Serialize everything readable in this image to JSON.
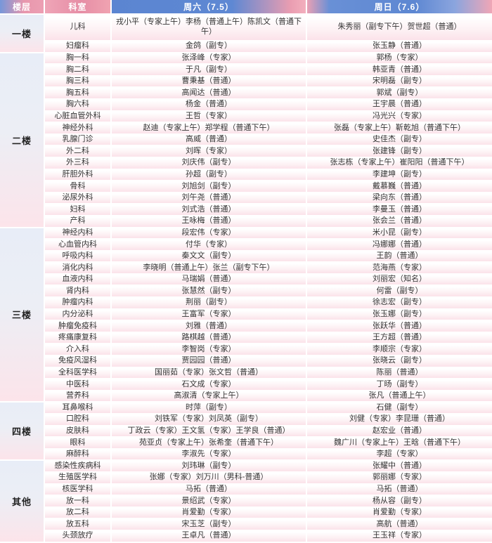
{
  "header": {
    "floor": "楼层",
    "dept": "科室",
    "sat": "周六（7.5）",
    "sun": "周日（7.6）"
  },
  "colors": {
    "header_pink": "#ec9fb3",
    "header_blue": "#5e87d2",
    "row_pink": "#fbe2e9",
    "floor_blue": "#e8edf7",
    "floor_pink": "#fce4ea"
  },
  "floors": [
    {
      "label": "一楼",
      "rows": 2
    },
    {
      "label": "二楼",
      "rows": 15
    },
    {
      "label": "三楼",
      "rows": 15
    },
    {
      "label": "四楼",
      "rows": 5
    },
    {
      "label": "其他",
      "rows": 7
    }
  ],
  "rows": [
    {
      "dept": "儿科",
      "sat": "戎小平（专家上午）李杨（普通上午）陈凯文（普通下午）",
      "sun": "朱秀丽（副专下午）贺世超（普通）",
      "tall": true
    },
    {
      "dept": "妇瘤科",
      "sat": "金鸽（副专）",
      "sun": "张玉静（普通）"
    },
    {
      "dept": "胸一科",
      "sat": "张泽峰（专家）",
      "sun": "郭杨（专家）"
    },
    {
      "dept": "胸二科",
      "sat": "于凡（副专）",
      "sun": "韩亚青（普通）"
    },
    {
      "dept": "胸三科",
      "sat": "曹秉基（普通）",
      "sun": "宋明磊（副专）"
    },
    {
      "dept": "胸五科",
      "sat": "高闻达（普通）",
      "sun": "郭斌（副专）"
    },
    {
      "dept": "胸六科",
      "sat": "杨金（普通）",
      "sun": "王宇晨（普通）"
    },
    {
      "dept": "心脏血管外科",
      "sat": "王哲（专家）",
      "sun": "冯光兴（专家）"
    },
    {
      "dept": "神经外科",
      "sat": "赵迪（专家上午）郑学程（普通下午）",
      "sun": "张磊（专家上午）靳乾旭（普通下午）"
    },
    {
      "dept": "乳腺门诊",
      "sat": "高威（普通）",
      "sun": "史佳杰（副专）"
    },
    {
      "dept": "外二科",
      "sat": "刘晖（专家）",
      "sun": "张建锋（副专）"
    },
    {
      "dept": "外三科",
      "sat": "刘庆伟（副专）",
      "sun": "张志栋（专家上午）崔阳阳（普通下午）"
    },
    {
      "dept": "肝胆外科",
      "sat": "孙超（副专）",
      "sun": "李建坤（副专）"
    },
    {
      "dept": "骨科",
      "sat": "刘旭剑（副专）",
      "sun": "戴慕巍（普通）"
    },
    {
      "dept": "泌尿外科",
      "sat": "刘午尧（普通）",
      "sun": "梁向东（普通）"
    },
    {
      "dept": "妇科",
      "sat": "刘式浩（普通）",
      "sun": "李曼玉（普通）"
    },
    {
      "dept": "产科",
      "sat": "王咏梅（普通）",
      "sun": "张会兰（普通）"
    },
    {
      "dept": "神经内科",
      "sat": "段宏伟（专家）",
      "sun": "米小昆（副专）"
    },
    {
      "dept": "心血管内科",
      "sat": "付华（专家）",
      "sun": "冯娜娜（普通）"
    },
    {
      "dept": "呼吸内科",
      "sat": "秦文文（副专）",
      "sun": "王韵（普通）"
    },
    {
      "dept": "消化内科",
      "sat": "李晓明（普通上午）张兰（副专下午）",
      "sun": "范海燕（专家）"
    },
    {
      "dept": "血液内科",
      "sat": "马瑞娟（普通）",
      "sun": "刘丽宏（知名）"
    },
    {
      "dept": "肾内科",
      "sat": "张慧然（副专）",
      "sun": "何雷（副专）"
    },
    {
      "dept": "肿瘤内科",
      "sat": "荆丽（副专）",
      "sun": "徐志宏（副专）"
    },
    {
      "dept": "内分泌科",
      "sat": "王富军（专家）",
      "sun": "张玉娜（副专）"
    },
    {
      "dept": "肿瘤免疫科",
      "sat": "刘雅（普通）",
      "sun": "张跃华（普通）"
    },
    {
      "dept": "疼痛康复科",
      "sat": "路棋越（普通）",
      "sun": "王方超（普通）"
    },
    {
      "dept": "介入科",
      "sat": "李智岗（专家）",
      "sun": "李顺宗（专家）"
    },
    {
      "dept": "免疫风湿科",
      "sat": "贾园园（普通）",
      "sun": "张晓云（副专）"
    },
    {
      "dept": "全科医学科",
      "sat": "国丽茹（专家）张文哲（普通）",
      "sun": "陈丽（普通）"
    },
    {
      "dept": "中医科",
      "sat": "石文成（专家）",
      "sun": "丁旸（副专）"
    },
    {
      "dept": "营养科",
      "sat": "高淑清（专家上午）",
      "sun": "张凡（普通上午）"
    },
    {
      "dept": "耳鼻喉科",
      "sat": "时萍（副专）",
      "sun": "石健（副专）"
    },
    {
      "dept": "口腔科",
      "sat": "刘铁军（专家）刘凤英（副专）",
      "sun": "刘健（专家）李昆珊（普通）"
    },
    {
      "dept": "皮肤科",
      "sat": "丁政云（专家）王文氢（专家）王学良（普通）",
      "sun": "赵宏业（普通）"
    },
    {
      "dept": "眼科",
      "sat": "苑亚贞（专家上午）张希奎（普通下午）",
      "sun": "魏广川（专家上午）王晗（普通下午）"
    },
    {
      "dept": "麻醉科",
      "sat": "李淑先（专家）",
      "sun": "李超（专家）"
    },
    {
      "dept": "感染性疾病科",
      "sat": "刘玮琳（副专）",
      "sun": "张耀中（普通）"
    },
    {
      "dept": "生殖医学科",
      "sat": "张娜（专家）刘万川（男科-普通）",
      "sun": "郭丽娜（专家）"
    },
    {
      "dept": "核医学科",
      "sat": "马拓（普通）",
      "sun": "马拓（普通）"
    },
    {
      "dept": "放一科",
      "sat": "景绍武（专家）",
      "sun": "杨从容（副专）"
    },
    {
      "dept": "放二科",
      "sat": "肖爱勤（专家）",
      "sun": "肖爱勤（专家）"
    },
    {
      "dept": "放五科",
      "sat": "宋玉芝（副专）",
      "sun": "高航（普通）"
    },
    {
      "dept": "头颈放疗",
      "sat": "王卓凡（普通）",
      "sun": "王玉祥（专家）"
    }
  ]
}
